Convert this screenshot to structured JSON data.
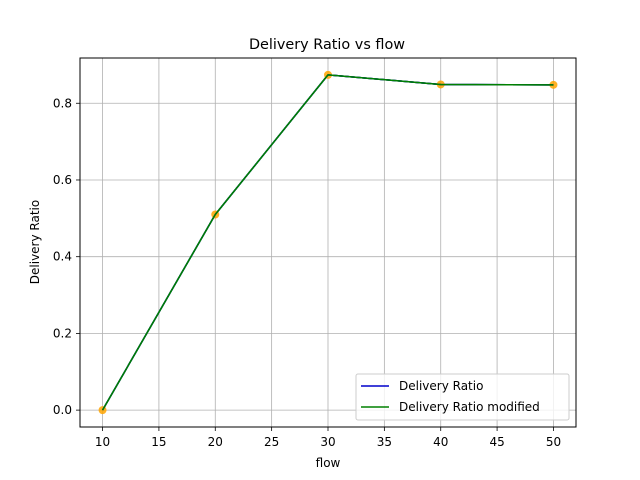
{
  "chart_data": {
    "type": "line",
    "title": "Delivery Ratio vs flow",
    "xlabel": "flow",
    "ylabel": "Delivery Ratio",
    "x": [
      10,
      20,
      30,
      40,
      50
    ],
    "xticks": [
      10,
      15,
      20,
      25,
      30,
      35,
      40,
      45,
      50
    ],
    "xtick_labels": [
      "10",
      "15",
      "20",
      "25",
      "30",
      "35",
      "40",
      "45",
      "50"
    ],
    "yticks": [
      0.0,
      0.2,
      0.4,
      0.6,
      0.8
    ],
    "ytick_labels": [
      "0.0",
      "0.2",
      "0.4",
      "0.6",
      "0.8"
    ],
    "xlim": [
      8,
      52
    ],
    "ylim": [
      -0.044,
      0.918
    ],
    "grid": true,
    "legend_position": "lower-right",
    "series": [
      {
        "name": "Delivery Ratio",
        "values": [
          0.0,
          0.51,
          0.874,
          0.849,
          0.848
        ],
        "color": "#0000cc",
        "marker": "none"
      },
      {
        "name": "Delivery Ratio modified",
        "values": [
          0.0,
          0.51,
          0.874,
          0.849,
          0.848
        ],
        "color": "#008000",
        "marker": "none"
      }
    ],
    "points": {
      "values": [
        0.0,
        0.51,
        0.874,
        0.849,
        0.848
      ],
      "color": "#ffa500"
    }
  }
}
